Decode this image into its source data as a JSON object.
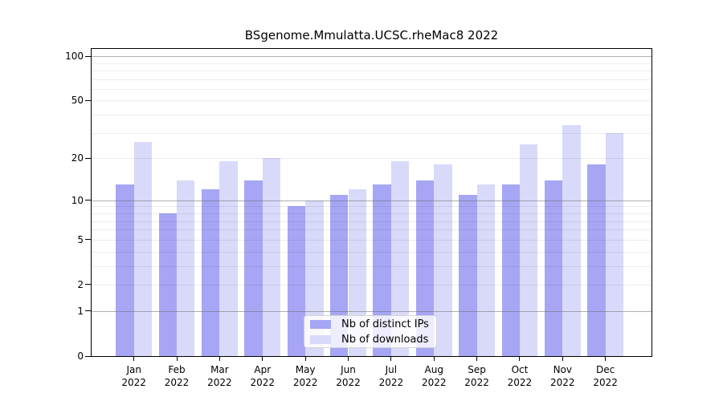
{
  "title": "BSgenome.Mmulatta.UCSC.rheMac8 2022",
  "chart_data": {
    "type": "bar",
    "title": "BSgenome.Mmulatta.UCSC.rheMac8 2022",
    "xlabel": "",
    "ylabel": "",
    "year": "2022",
    "categories": [
      "Jan",
      "Feb",
      "Mar",
      "Apr",
      "May",
      "Jun",
      "Jul",
      "Aug",
      "Sep",
      "Oct",
      "Nov",
      "Dec"
    ],
    "series": [
      {
        "name": "Nb of distinct IPs",
        "color": "#a6a6f4",
        "values": [
          13,
          8,
          12,
          14,
          9,
          11,
          13,
          14,
          11,
          13,
          14,
          18
        ]
      },
      {
        "name": "Nb of downloads",
        "color": "#d9d9fa",
        "values": [
          26,
          14,
          19,
          20,
          10,
          12,
          19,
          18,
          13,
          25,
          34,
          30
        ]
      }
    ],
    "y_axis": {
      "scale": "log1p",
      "tick_values": [
        0,
        1,
        2,
        5,
        10,
        20,
        50,
        100
      ],
      "major_grid_values": [
        1,
        10,
        100
      ],
      "minor_grid_values": [
        2,
        3,
        4,
        5,
        6,
        7,
        8,
        9,
        20,
        30,
        40,
        50,
        60,
        70,
        80,
        90
      ],
      "top_value": 112
    },
    "legend": {
      "position": "bottom-center"
    },
    "colors": {
      "axis": "#000000",
      "major_grid": "#9a9a9a",
      "minor_grid": "#ececec",
      "background": "#ffffff"
    }
  }
}
